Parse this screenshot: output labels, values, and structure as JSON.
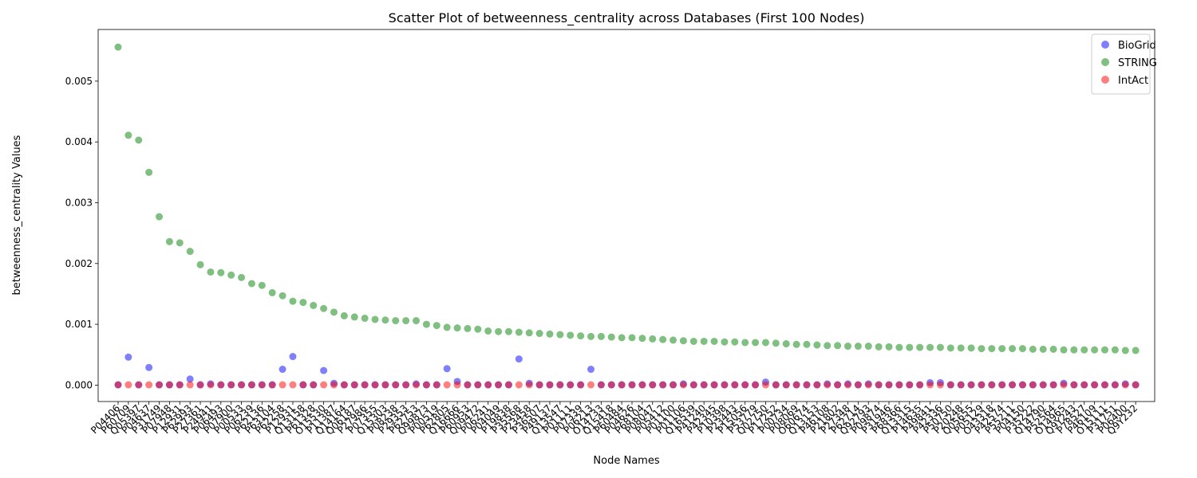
{
  "chart_data": {
    "type": "scatter",
    "title": "Scatter Plot of betweenness_centrality across Databases (First 100 Nodes)",
    "xlabel": "Node Names",
    "ylabel": "betweenness_centrality Values",
    "ylim": [
      -0.00027,
      0.00585
    ],
    "yticks": [
      0.0,
      0.001,
      0.002,
      0.003,
      0.004,
      0.005
    ],
    "ytick_labels": [
      "0.000",
      "0.001",
      "0.002",
      "0.003",
      "0.004",
      "0.005"
    ],
    "grid": false,
    "legend_position": "top-right",
    "categories": [
      "P04406",
      "P60709",
      "Q05397",
      "P04637",
      "P31749",
      "P07948",
      "P12931",
      "P62993",
      "P27361",
      "P24941",
      "P06493",
      "P07900",
      "P00533",
      "P06239",
      "P62136",
      "P63104",
      "P62258",
      "P12931",
      "Q13158",
      "P61328",
      "O15530",
      "P11387",
      "Q14164",
      "Q06187",
      "P27986",
      "P07355",
      "Q15303",
      "P08238",
      "P29353",
      "P62753",
      "Q99873",
      "P00519",
      "P62805",
      "Q16666",
      "P60953",
      "Q09472",
      "P06241",
      "P04049",
      "P19838",
      "P35568",
      "P23458",
      "P36507",
      "P49137",
      "Q13547",
      "P01111",
      "P07339",
      "P06213",
      "O14733",
      "Q15418",
      "P60484",
      "P04626",
      "P68104",
      "P08047",
      "P05412",
      "P01100",
      "P01106",
      "Q16539",
      "P41240",
      "P42345",
      "P10398",
      "P23443",
      "P15056",
      "P53779",
      "Q02750",
      "P17252",
      "P00734",
      "P08069",
      "O60674",
      "Q13153",
      "P46108",
      "P21802",
      "P27348",
      "P62714",
      "Q92793",
      "P09874",
      "P31946",
      "P68366",
      "Q13315",
      "P14635",
      "P49841",
      "P42336",
      "P50750",
      "P20248",
      "Q05655",
      "P05129",
      "O43318",
      "P42574",
      "P55211",
      "P04150",
      "P35222",
      "Q14790",
      "P52564",
      "O14965",
      "Q9Y243",
      "P78527",
      "P46109",
      "O15111",
      "P31751",
      "P06400",
      "Q9Y232"
    ],
    "tick_labels": [
      "P04406",
      "P60709",
      "Q05397",
      "P04637",
      "P31749",
      "P07948",
      "P12931",
      "P62993",
      "P27361",
      "P24941",
      "P06493",
      "P07900",
      "P00533",
      "P06239",
      "P62136",
      "P63104",
      "P62258",
      "P12931",
      "Q13158",
      "P61328",
      "O15530",
      "P11387",
      "Q14164",
      "Q06187",
      "P27986",
      "P07355",
      "Q15303",
      "P08238",
      "P29353",
      "P62753",
      "Q99873",
      "P00519",
      "P62805",
      "Q16666",
      "P60953",
      "Q09472",
      "P06241",
      "P04049",
      "P19838",
      "P35568",
      "P23458",
      "P36507",
      "P49137",
      "Q13547",
      "P01111",
      "P07339",
      "P06213",
      "O14733",
      "Q15418",
      "P60484",
      "P04626",
      "P68104",
      "P08047",
      "P05412",
      "P01100",
      "P01106",
      "Q16539",
      "P41240",
      "P42345",
      "P10398",
      "P23443",
      "P15056",
      "P53779",
      "Q02750",
      "P17252",
      "P00734",
      "P08069",
      "O60674",
      "Q13153",
      "P46108",
      "P21802",
      "P27348",
      "P62714",
      "Q92793",
      "P09874",
      "P31946",
      "P68366",
      "Q13315",
      "P14635",
      "P49841",
      "P42336",
      "P50750",
      "P20248",
      "Q05655",
      "P05129",
      "O43318",
      "P42574",
      "P55211",
      "P04150",
      "P35222",
      "Q14790",
      "P52564",
      "O14965",
      "Q9Y243",
      "P78527",
      "P46109",
      "O15111",
      "P31751",
      "P06400",
      "Q9Y232"
    ],
    "series": [
      {
        "name": "BioGrid",
        "color": "#0000ff",
        "values": [
          5e-06,
          0.00046,
          5e-06,
          0.00029,
          5e-06,
          5e-06,
          5e-06,
          0.0001,
          5e-06,
          2e-05,
          5e-06,
          5e-06,
          5e-06,
          5e-06,
          5e-06,
          5e-06,
          0.00026,
          0.00047,
          5e-06,
          5e-06,
          0.00024,
          3e-05,
          5e-06,
          5e-06,
          5e-06,
          5e-06,
          5e-06,
          5e-06,
          5e-06,
          2e-05,
          5e-06,
          5e-06,
          0.00027,
          6e-05,
          5e-06,
          5e-06,
          5e-06,
          5e-06,
          5e-06,
          0.00043,
          3e-05,
          5e-06,
          5e-06,
          5e-06,
          5e-06,
          5e-06,
          0.00026,
          5e-06,
          5e-06,
          5e-06,
          5e-06,
          5e-06,
          5e-06,
          5e-06,
          5e-06,
          2e-05,
          5e-06,
          5e-06,
          5e-06,
          5e-06,
          5e-06,
          5e-06,
          5e-06,
          5e-05,
          5e-06,
          5e-06,
          5e-06,
          5e-06,
          5e-06,
          2e-05,
          5e-06,
          2e-05,
          5e-06,
          2e-05,
          5e-06,
          5e-06,
          5e-06,
          5e-06,
          5e-06,
          4e-05,
          4e-05,
          5e-06,
          5e-06,
          5e-06,
          5e-06,
          5e-06,
          5e-06,
          5e-06,
          5e-06,
          5e-06,
          5e-06,
          5e-06,
          3e-05,
          5e-06,
          5e-06,
          5e-06,
          5e-06,
          5e-06,
          2e-05,
          5e-06
        ]
      },
      {
        "name": "STRING",
        "color": "#008000",
        "values": [
          0.00556,
          0.00411,
          0.00403,
          0.0035,
          0.00277,
          0.00236,
          0.00234,
          0.0022,
          0.00198,
          0.00186,
          0.00185,
          0.00181,
          0.00177,
          0.00167,
          0.00164,
          0.00152,
          0.00147,
          0.00138,
          0.00136,
          0.00131,
          0.00126,
          0.0012,
          0.00114,
          0.00112,
          0.0011,
          0.00108,
          0.00107,
          0.00106,
          0.00106,
          0.00106,
          0.001,
          0.00098,
          0.00095,
          0.00094,
          0.00093,
          0.00092,
          0.00089,
          0.00088,
          0.00088,
          0.00087,
          0.00086,
          0.00085,
          0.00084,
          0.00083,
          0.00082,
          0.00081,
          0.0008,
          0.0008,
          0.00079,
          0.00078,
          0.00078,
          0.00077,
          0.00076,
          0.00075,
          0.00074,
          0.00073,
          0.00072,
          0.00072,
          0.00072,
          0.00071,
          0.00071,
          0.0007,
          0.0007,
          0.0007,
          0.00069,
          0.00068,
          0.00067,
          0.00067,
          0.00066,
          0.00065,
          0.00065,
          0.00064,
          0.00064,
          0.00064,
          0.00063,
          0.00063,
          0.00062,
          0.00062,
          0.00062,
          0.00062,
          0.00062,
          0.00061,
          0.00061,
          0.00061,
          0.0006,
          0.0006,
          0.0006,
          0.0006,
          0.0006,
          0.00059,
          0.00059,
          0.00059,
          0.00058,
          0.00058,
          0.00058,
          0.00058,
          0.00058,
          0.00058,
          0.00057,
          0.00057
        ]
      },
      {
        "name": "IntAct",
        "color": "#ff0000",
        "values": [
          5e-06,
          5e-06,
          5e-06,
          5e-06,
          5e-06,
          5e-06,
          5e-06,
          5e-06,
          5e-06,
          5e-06,
          5e-06,
          5e-06,
          5e-06,
          5e-06,
          5e-06,
          5e-06,
          5e-06,
          5e-06,
          5e-06,
          5e-06,
          5e-06,
          5e-06,
          5e-06,
          5e-06,
          5e-06,
          5e-06,
          5e-06,
          5e-06,
          5e-06,
          5e-06,
          5e-06,
          5e-06,
          5e-06,
          5e-06,
          5e-06,
          5e-06,
          5e-06,
          5e-06,
          5e-06,
          5e-06,
          5e-06,
          5e-06,
          5e-06,
          5e-06,
          5e-06,
          5e-06,
          5e-06,
          5e-06,
          5e-06,
          5e-06,
          5e-06,
          5e-06,
          5e-06,
          5e-06,
          5e-06,
          5e-06,
          5e-06,
          5e-06,
          5e-06,
          5e-06,
          5e-06,
          5e-06,
          5e-06,
          5e-06,
          5e-06,
          5e-06,
          5e-06,
          5e-06,
          5e-06,
          5e-06,
          5e-06,
          5e-06,
          5e-06,
          5e-06,
          5e-06,
          5e-06,
          5e-06,
          5e-06,
          5e-06,
          5e-06,
          5e-06,
          5e-06,
          5e-06,
          5e-06,
          5e-06,
          5e-06,
          5e-06,
          5e-06,
          5e-06,
          5e-06,
          5e-06,
          5e-06,
          5e-06,
          5e-06,
          5e-06,
          5e-06,
          5e-06,
          5e-06,
          5e-06,
          5e-06
        ]
      }
    ]
  }
}
